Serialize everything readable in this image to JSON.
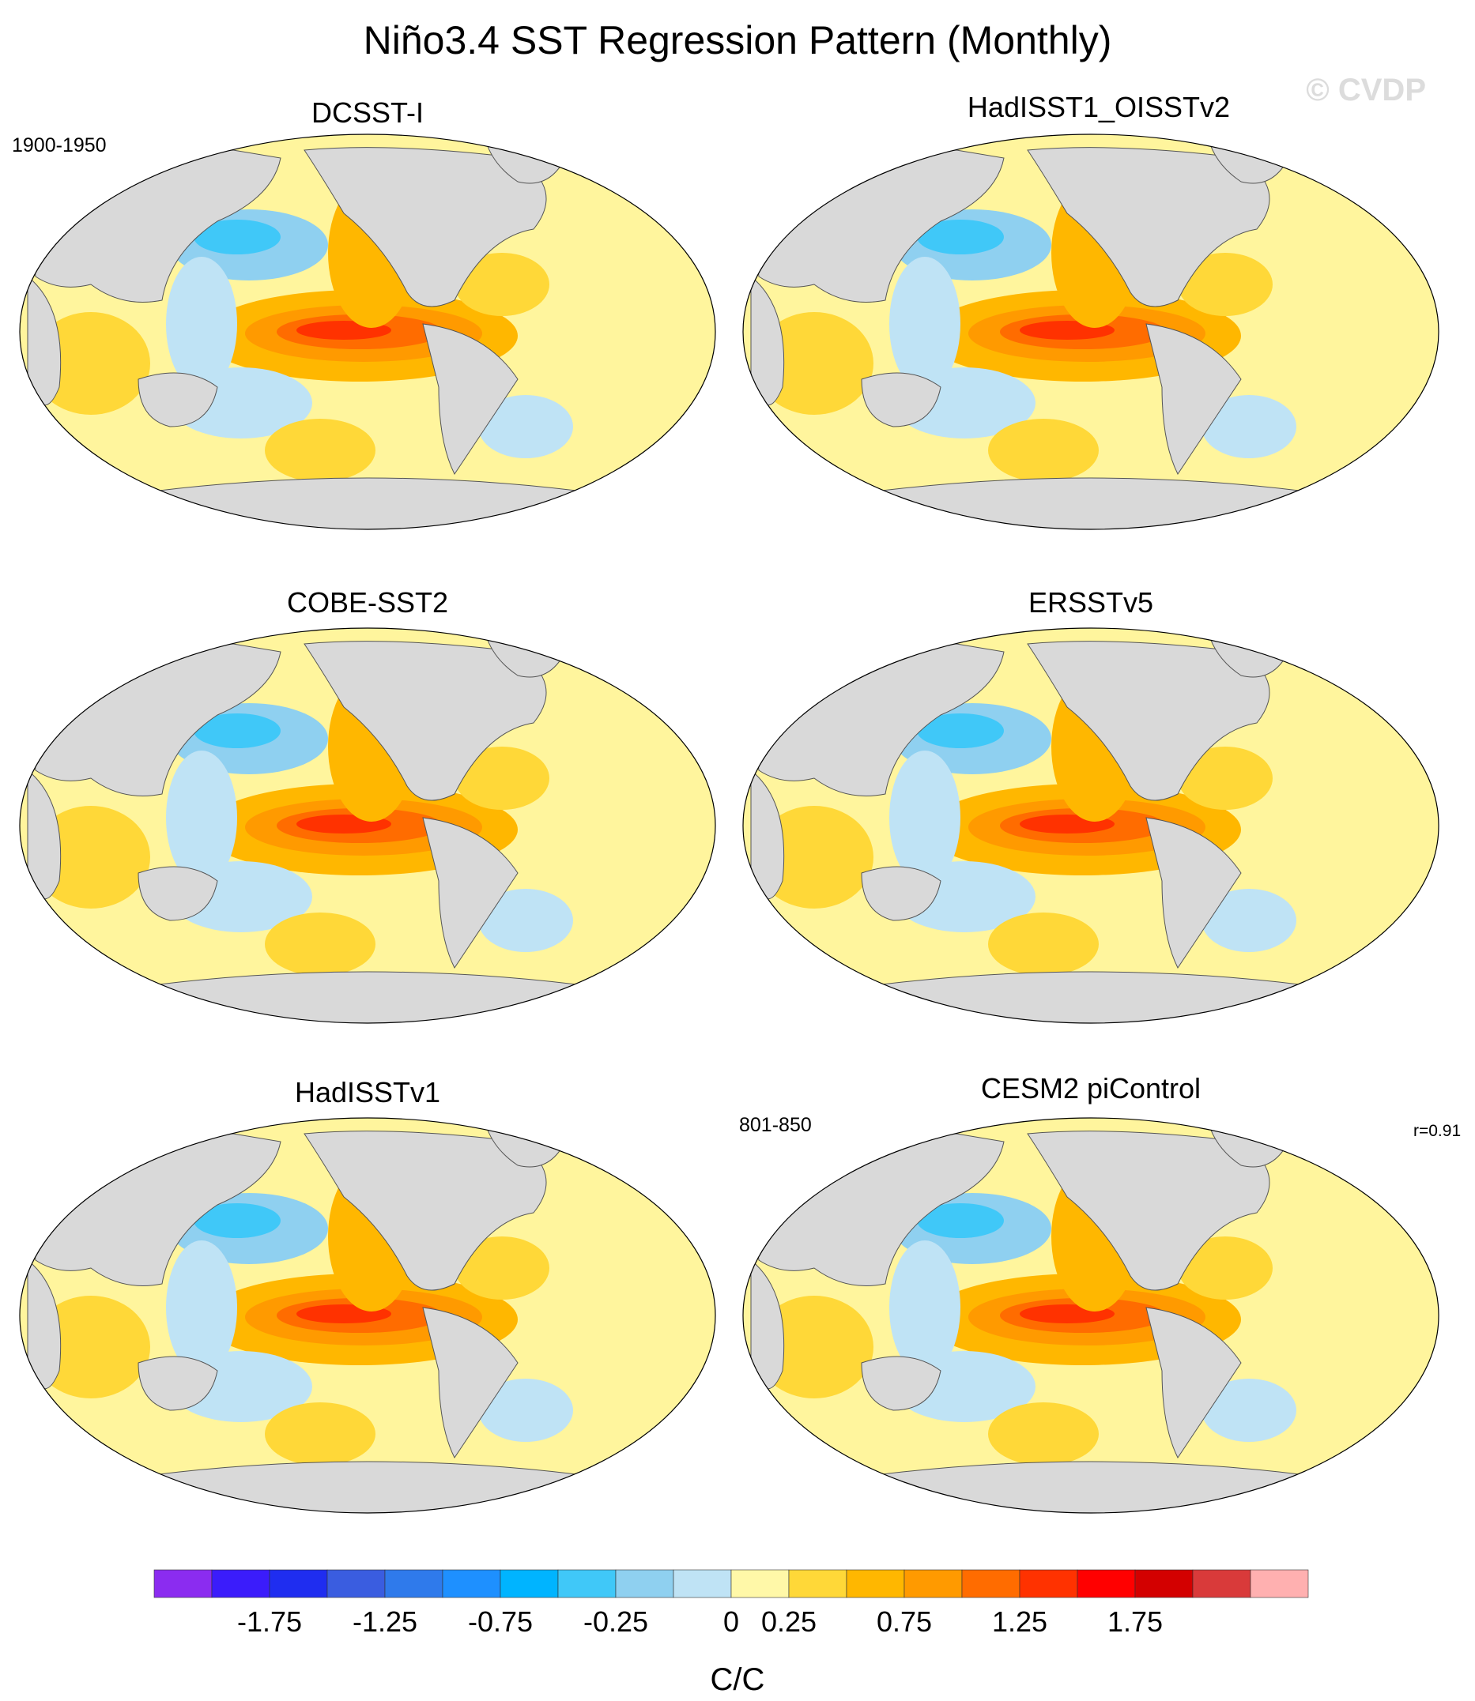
{
  "title": "Niño3.4 SST Regression Pattern (Monthly)",
  "watermark": "© CVDP",
  "panels": [
    {
      "name": "DCSST-I",
      "period": "1900-1950",
      "corr": ""
    },
    {
      "name": "HadISST1_OISSTv2",
      "period": "",
      "corr": ""
    },
    {
      "name": "COBE-SST2",
      "period": "",
      "corr": ""
    },
    {
      "name": "ERSSTv5",
      "period": "",
      "corr": ""
    },
    {
      "name": "HadISSTv1",
      "period": "",
      "corr": ""
    },
    {
      "name": "CESM2 piControl",
      "period": "801-850",
      "corr": "r=0.91"
    }
  ],
  "colorbar": {
    "units": "C/C",
    "colors": [
      "#8b2cf0",
      "#3b1cfb",
      "#1f2df0",
      "#3a5de0",
      "#2f7aeb",
      "#1e90ff",
      "#00b4ff",
      "#40c8f8",
      "#8fd0f0",
      "#bfe3f5",
      "#fff8a8",
      "#ffd838",
      "#ffb700",
      "#ff9a00",
      "#ff6c00",
      "#ff3200",
      "#ff0000",
      "#d30000",
      "#d93a3a",
      "#ffb0b0"
    ],
    "tick_labels": [
      "-1.75",
      "-1.25",
      "-0.75",
      "-0.25",
      "0",
      "0.25",
      "0.75",
      "1.25",
      "1.75"
    ]
  },
  "colors": {
    "land": "#d9d9d9",
    "ocean_background": "#fff59d"
  }
}
